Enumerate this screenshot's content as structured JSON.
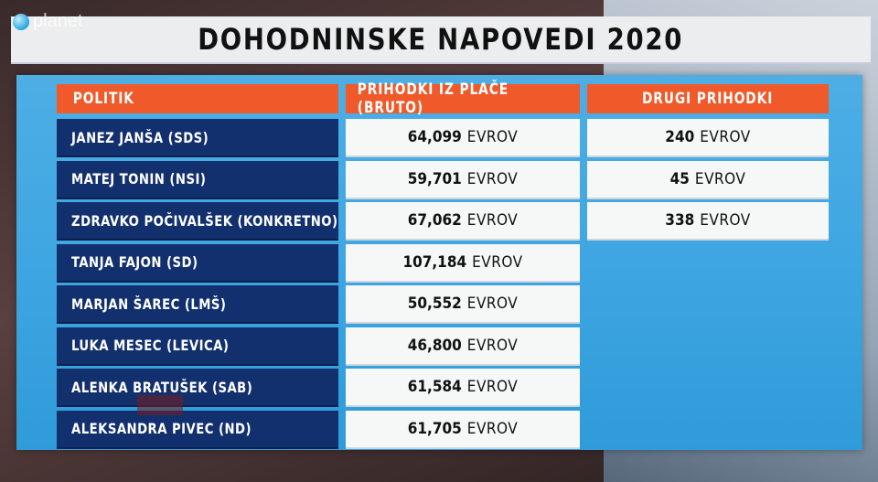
{
  "logo": {
    "text": "planet"
  },
  "title": "DOHODNINSKE NAPOVEDI 2020",
  "headers": {
    "politik": "POLITIK",
    "salary": "PRIHODKI IZ PLAČE (BRUTO)",
    "other": "DRUGI PRIHODKI"
  },
  "unit": "EVROV",
  "rows": [
    {
      "name": "JANEZ JANŠA (SDS)",
      "salary": "64,099",
      "other": "240"
    },
    {
      "name": "MATEJ TONIN (NSI)",
      "salary": "59,701",
      "other": "45"
    },
    {
      "name": "ZDRAVKO POČIVALŠEK (KONKRETNO)",
      "salary": "67,062",
      "other": "338"
    },
    {
      "name": "TANJA FAJON (SD)",
      "salary": "107,184"
    },
    {
      "name": "MARJAN ŠAREC (LMŠ)",
      "salary": "50,552"
    },
    {
      "name": "LUKA MESEC (LEVICA)",
      "salary": "46,800"
    },
    {
      "name": "ALENKA BRATUŠEK (SAB)",
      "salary": "61,584"
    },
    {
      "name": "ALEKSANDRA PIVEC (ND)",
      "salary": "61,705"
    }
  ],
  "colors": {
    "header_orange": "#f0592a",
    "name_navy": "#13306e",
    "panel_blue": "#3ea6e2",
    "cell_white": "#f6f7f7"
  }
}
